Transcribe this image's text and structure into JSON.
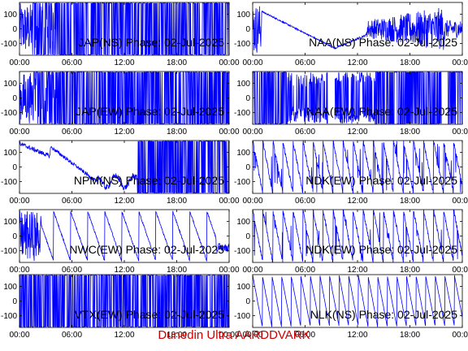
{
  "footer": "Dunedin Ultra AARDDVARK",
  "colors": {
    "trace": "#0000ff",
    "footer": "#cc0000"
  },
  "chart_data": [
    {
      "type": "line",
      "title": "JAP(NS) Phase: 02-Jul-2025",
      "xticks": [
        "00:00",
        "06:00",
        "12:00",
        "18:00",
        "00:00"
      ],
      "yticks": [
        "100",
        "0",
        "-100"
      ],
      "xlim": [
        0,
        24
      ],
      "ylim": [
        -180,
        180
      ],
      "pattern": "dense_late",
      "grid": false
    },
    {
      "type": "line",
      "title": "NAA(NS) Phase: 02-Jul-2025",
      "xticks": [
        "00:00",
        "06:00",
        "12:00",
        "18:00",
        "00:00"
      ],
      "yticks": [
        "100",
        "0",
        "-100"
      ],
      "xlim": [
        0,
        24
      ],
      "ylim": [
        -180,
        180
      ],
      "pattern": "vshape",
      "grid": false
    },
    {
      "type": "line",
      "title": "JAP(EW) Phase: 02-Jul-2025",
      "xticks": [
        "00:00",
        "06:00",
        "12:00",
        "18:00",
        "00:00"
      ],
      "yticks": [
        "100",
        "0",
        "-100"
      ],
      "xlim": [
        0,
        24
      ],
      "ylim": [
        -180,
        180
      ],
      "pattern": "dense_late",
      "grid": false
    },
    {
      "type": "line",
      "title": "NAA(EW) Phase: 02-Jul-2025",
      "xticks": [
        "00:00",
        "06:00",
        "12:00",
        "18:00",
        "00:00"
      ],
      "yticks": [
        "100",
        "0",
        "-100"
      ],
      "xlim": [
        0,
        24
      ],
      "ylim": [
        -180,
        180
      ],
      "pattern": "band_gaps",
      "grid": false
    },
    {
      "type": "line",
      "title": "NPM(NS) Phase: 02-Jul-2025",
      "xticks": [
        "00:00",
        "06:00",
        "12:00",
        "18:00",
        "00:00"
      ],
      "yticks": [
        "100",
        "0",
        "-100"
      ],
      "xlim": [
        0,
        24
      ],
      "ylim": [
        -180,
        180
      ],
      "pattern": "drift_then_dense",
      "grid": false
    },
    {
      "type": "line",
      "title": "NDK(EW) Phase: 02-Jul-2025",
      "xticks": [
        "00:00",
        "06:00",
        "12:00",
        "18:00",
        "00:00"
      ],
      "yticks": [
        "100",
        "0",
        "-100"
      ],
      "xlim": [
        0,
        24
      ],
      "ylim": [
        -180,
        180
      ],
      "pattern": "sawtooth",
      "grid": false
    },
    {
      "type": "line",
      "title": "NWC(EW) Phase: 02-Jul-2025",
      "xticks": [
        "00:00",
        "06:00",
        "12:00",
        "18:00",
        "00:00"
      ],
      "yticks": [
        "100",
        "0",
        "-100"
      ],
      "xlim": [
        0,
        24
      ],
      "ylim": [
        -180,
        180
      ],
      "pattern": "sawtooth_sparse",
      "grid": false
    },
    {
      "type": "line",
      "title": "NDK(EW) Phase: 02-Jul-2025",
      "xticks": [
        "00:00",
        "06:00",
        "12:00",
        "18:00",
        "00:00"
      ],
      "yticks": [
        "100",
        "0",
        "-100"
      ],
      "xlim": [
        0,
        24
      ],
      "ylim": [
        -180,
        180
      ],
      "pattern": "sawtooth",
      "grid": false
    },
    {
      "type": "line",
      "title": "VTX(EW) Phase: 02-Jul-2025",
      "xticks": [
        "00:00",
        "06:00",
        "12:00",
        "18:00",
        "00:00"
      ],
      "yticks": [
        "100",
        "0",
        "-100"
      ],
      "xlim": [
        0,
        24
      ],
      "ylim": [
        -180,
        180
      ],
      "pattern": "solid",
      "grid": false
    },
    {
      "type": "line",
      "title": "NLK(NS) Phase: 02-Jul-2025",
      "xticks": [
        "00:00",
        "06:00",
        "12:00",
        "18:00",
        "00:00"
      ],
      "yticks": [
        "100",
        "0",
        "-100"
      ],
      "xlim": [
        0,
        24
      ],
      "ylim": [
        -180,
        180
      ],
      "pattern": "sawtooth_clean",
      "grid": false
    }
  ]
}
